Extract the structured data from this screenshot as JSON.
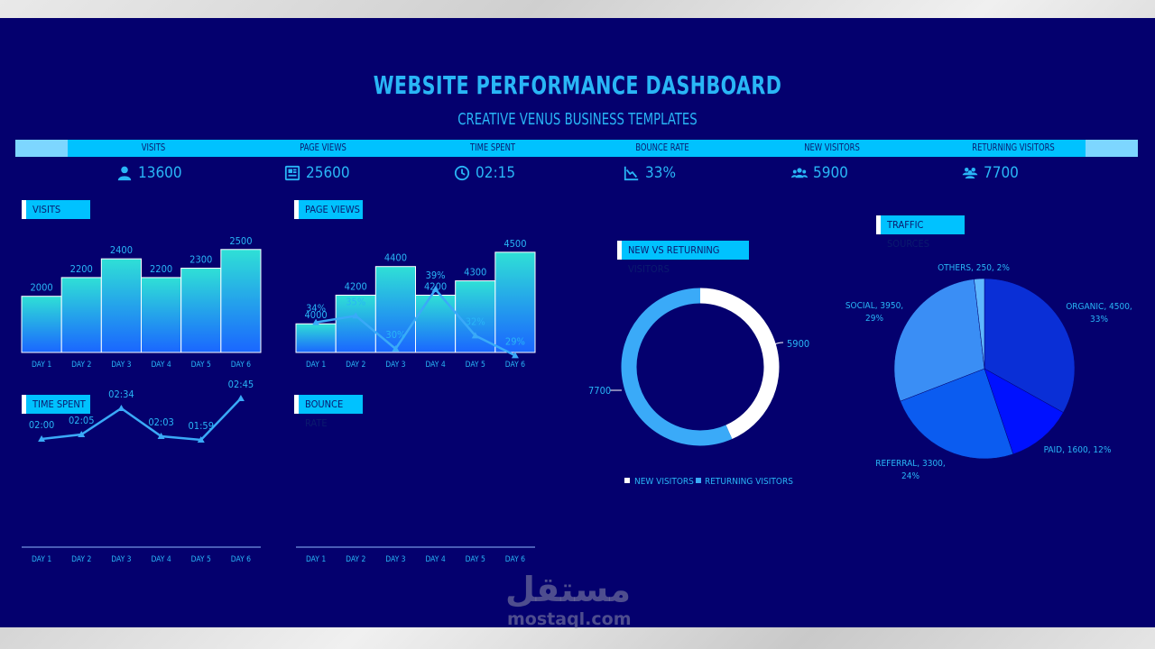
{
  "header": {
    "title": "WEBSITE PERFORMANCE DASHBOARD",
    "subtitle": "CREATIVE VENUS BUSINESS TEMPLATES"
  },
  "kpis": [
    {
      "label": "VISITS",
      "value": "13600",
      "icon": "user-icon"
    },
    {
      "label": "PAGE VIEWS",
      "value": "25600",
      "icon": "page-icon"
    },
    {
      "label": "TIME SPENT",
      "value": "02:15",
      "icon": "clock-icon"
    },
    {
      "label": "BOUNCE RATE",
      "value": "33%",
      "icon": "chart-down-icon"
    },
    {
      "label": "NEW VISITORS",
      "value": "5900",
      "icon": "group-icon"
    },
    {
      "label": "RETURNING VISITORS",
      "value": "7700",
      "icon": "crowd-icon"
    }
  ],
  "colors": {
    "background": "#04006e",
    "accent": "#00c2ff",
    "text": "#29b6f6",
    "bar_top": "#2fe0d6",
    "bar_bottom": "#1a66ff",
    "donut_new": "#ffffff",
    "donut_returning": "#3aaaf8",
    "pie_organic": "#0a2fd6",
    "pie_paid": "#0011ff",
    "pie_referral": "#0b5cf0",
    "pie_social": "#3a8ef5",
    "pie_others": "#5fb8ff"
  },
  "watermark": {
    "brand": "مستقل",
    "domain": "mostaql.com"
  },
  "chart_data": [
    {
      "type": "bar",
      "title": "VISITS",
      "categories": [
        "DAY 1",
        "DAY 2",
        "DAY 3",
        "DAY 4",
        "DAY 5",
        "DAY 6"
      ],
      "values": [
        2000,
        2200,
        2400,
        2200,
        2300,
        2500
      ],
      "ylim": [
        1400,
        2700
      ]
    },
    {
      "type": "bar",
      "title": "PAGE VIEWS",
      "categories": [
        "DAY 1",
        "DAY 2",
        "DAY 3",
        "DAY 4",
        "DAY 5",
        "DAY 6"
      ],
      "values": [
        4000,
        4200,
        4400,
        4200,
        4300,
        4500
      ],
      "ylim": [
        3800,
        4650
      ]
    },
    {
      "type": "line",
      "title": "TIME SPENT",
      "categories": [
        "DAY 1",
        "DAY 2",
        "DAY 3",
        "DAY 4",
        "DAY 5",
        "DAY 6"
      ],
      "labels": [
        "02:00",
        "02:05",
        "02:34",
        "02:03",
        "01:59",
        "02:45"
      ],
      "values": [
        120,
        125,
        154,
        123,
        119,
        165
      ],
      "ylim": [
        0,
        330
      ]
    },
    {
      "type": "line",
      "title": "BOUNCE RATE",
      "categories": [
        "DAY 1",
        "DAY 2",
        "DAY 3",
        "DAY 4",
        "DAY 5",
        "DAY 6"
      ],
      "labels": [
        "34%",
        "35%",
        "30%",
        "39%",
        "32%",
        "29%"
      ],
      "values": [
        34,
        35,
        30,
        39,
        32,
        29
      ],
      "ylim": [
        0,
        45
      ]
    },
    {
      "type": "pie",
      "donut": true,
      "title": "NEW VS RETURNING VISITORS",
      "categories": [
        "NEW VISITORS",
        "RETURNING VISITORS"
      ],
      "values": [
        5900,
        7700
      ],
      "labels": [
        "5900",
        "7700"
      ],
      "legend": "bottom"
    },
    {
      "type": "pie",
      "title": "TRAFFIC SOURCES",
      "categories": [
        "ORGANIC",
        "PAID",
        "REFERRAL",
        "SOCIAL",
        "OTHERS"
      ],
      "values": [
        4500,
        1600,
        3300,
        3950,
        250
      ],
      "percents": [
        33,
        12,
        24,
        29,
        2
      ],
      "labels": [
        [
          "ORGANIC, 4500,",
          "33%"
        ],
        [
          "PAID, 1600, 12%"
        ],
        [
          "REFERRAL, 3300,",
          "24%"
        ],
        [
          "SOCIAL, 3950,",
          "29%"
        ],
        [
          "OTHERS, 250, 2%"
        ]
      ]
    }
  ]
}
